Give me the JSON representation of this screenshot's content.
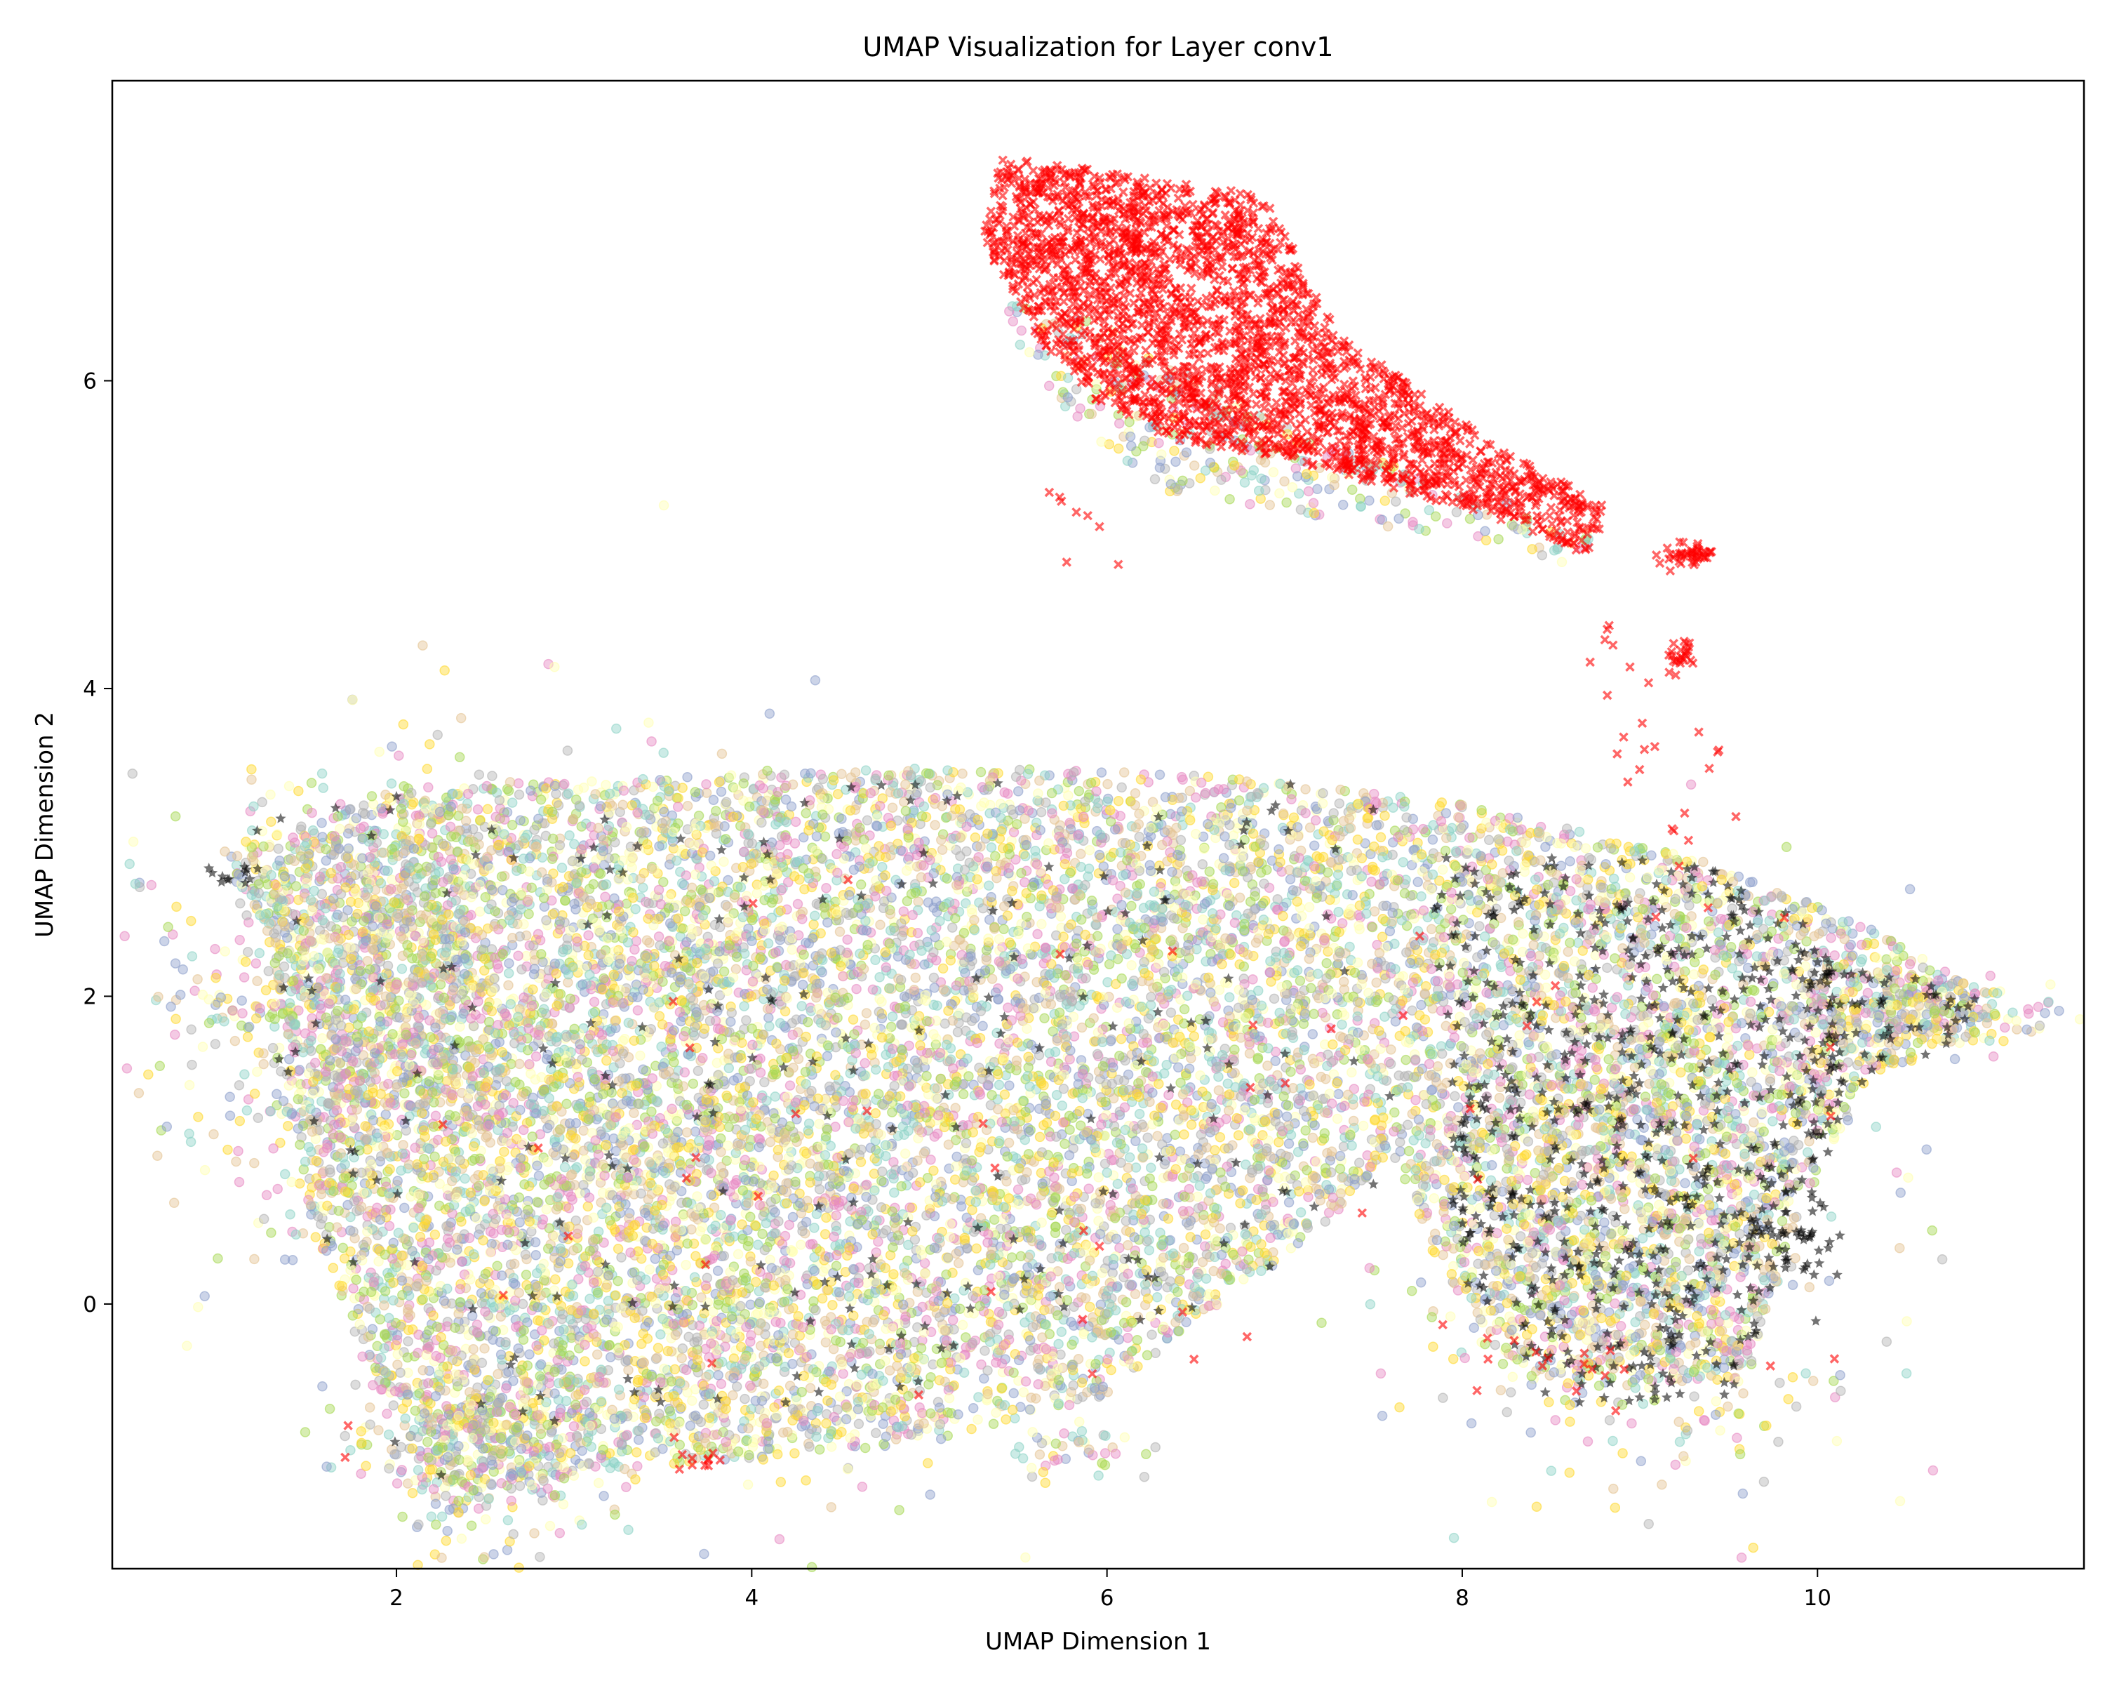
{
  "chart_data": {
    "type": "scatter",
    "title": "UMAP Visualization for Layer conv1",
    "xlabel": "UMAP Dimension 1",
    "ylabel": "UMAP Dimension 2",
    "xlim": [
      0.4,
      11.5
    ],
    "ylim": [
      -1.72,
      7.95
    ],
    "xticks": [
      2,
      4,
      6,
      8,
      10
    ],
    "yticks": [
      0,
      2,
      4,
      6
    ],
    "grid": false,
    "legend": "none",
    "colors": {
      "red": "#ff0000",
      "black": "#000000",
      "teal": "#8dd3c7",
      "light_yellow": "#ffffb3",
      "gold": "#ffd92f",
      "blue_gray": "#8da0cb",
      "green": "#a6d854",
      "pink": "#e78ac3",
      "tan": "#e5c494",
      "gray": "#b3b3b3"
    },
    "series": [
      {
        "marker": "x",
        "color": "#ff0000",
        "clusters": [
          {
            "shape": "poly",
            "pts": [
              [
                5.4,
                7.45
              ],
              [
                6.4,
                7.3
              ],
              [
                6.9,
                7.2
              ],
              [
                7.3,
                6.3
              ],
              [
                7.8,
                5.9
              ],
              [
                8.3,
                5.5
              ],
              [
                8.8,
                5.2
              ],
              [
                8.75,
                4.85
              ],
              [
                8.2,
                5.1
              ],
              [
                7.6,
                5.3
              ],
              [
                7.0,
                5.5
              ],
              [
                6.4,
                5.6
              ],
              [
                5.9,
                5.9
              ],
              [
                5.6,
                6.3
              ],
              [
                5.3,
                6.9
              ]
            ],
            "n": 2600
          },
          {
            "shape": "blob",
            "cx": 9.3,
            "cy": 4.87,
            "rx": 0.07,
            "ry": 0.04,
            "n": 45
          },
          {
            "shape": "blob",
            "cx": 9.25,
            "cy": 4.23,
            "rx": 0.04,
            "ry": 0.05,
            "n": 22
          },
          {
            "shape": "poly",
            "pts": [
              [
                8.6,
                4.4
              ],
              [
                9.1,
                4.45
              ],
              [
                9.55,
                3.4
              ],
              [
                9.55,
                2.6
              ],
              [
                9.3,
                2.6
              ],
              [
                8.6,
                3.8
              ]
            ],
            "n": 28
          },
          {
            "shape": "poly",
            "pts": [
              [
                5.6,
                5.3
              ],
              [
                5.9,
                5.3
              ],
              [
                6.3,
                4.7
              ],
              [
                5.8,
                4.7
              ]
            ],
            "n": 8
          },
          {
            "shape": "poly",
            "pts": [
              [
                1.4,
                2.8
              ],
              [
                10.4,
                2.8
              ],
              [
                10.2,
                -0.5
              ],
              [
                1.5,
                -1.1
              ]
            ],
            "n": 55
          },
          {
            "shape": "blob",
            "cx": 8.7,
            "cy": -0.4,
            "rx": 0.3,
            "ry": 0.15,
            "n": 12
          },
          {
            "shape": "blob",
            "cx": 3.75,
            "cy": -1.05,
            "rx": 0.08,
            "ry": 0.05,
            "n": 10
          }
        ]
      },
      {
        "marker": "star",
        "color": "#000000",
        "clusters": [
          {
            "shape": "poly",
            "pts": [
              [
                7.8,
                2.9
              ],
              [
                9.3,
                2.9
              ],
              [
                10.1,
                2.4
              ],
              [
                10.2,
                1.5
              ],
              [
                9.9,
                0.4
              ],
              [
                9.5,
                -0.6
              ],
              [
                8.5,
                -0.7
              ],
              [
                8.0,
                0.1
              ],
              [
                7.9,
                1.2
              ]
            ],
            "n": 650
          },
          {
            "shape": "blob",
            "cx": 9.85,
            "cy": 0.45,
            "rx": 0.12,
            "ry": 0.18,
            "n": 45
          },
          {
            "shape": "poly",
            "pts": [
              [
                10.0,
                2.3
              ],
              [
                10.9,
                2.0
              ],
              [
                10.8,
                1.7
              ],
              [
                10.0,
                1.3
              ]
            ],
            "n": 55
          },
          {
            "shape": "poly",
            "pts": [
              [
                1.2,
                3.3
              ],
              [
                7.8,
                3.5
              ],
              [
                7.5,
                0.3
              ],
              [
                5.0,
                -0.5
              ],
              [
                2.0,
                -1.2
              ],
              [
                1.3,
                1.0
              ]
            ],
            "n": 230
          },
          {
            "shape": "blob",
            "cx": 1.1,
            "cy": 2.82,
            "rx": 0.08,
            "ry": 0.04,
            "n": 12
          }
        ]
      },
      {
        "marker": "circle",
        "palette": [
          "#8dd3c7",
          "#ffffb3",
          "#ffd92f",
          "#8da0cb",
          "#a6d854",
          "#e78ac3",
          "#e5c494",
          "#b3b3b3"
        ],
        "clusters": [
          {
            "shape": "poly",
            "pts": [
              [
                1.0,
                2.9
              ],
              [
                2.0,
                3.35
              ],
              [
                4.0,
                3.45
              ],
              [
                5.5,
                3.5
              ],
              [
                7.0,
                3.4
              ],
              [
                8.0,
                3.25
              ],
              [
                9.3,
                2.9
              ],
              [
                10.2,
                2.5
              ],
              [
                10.9,
                2.05
              ],
              [
                10.9,
                1.7
              ],
              [
                10.3,
                1.5
              ],
              [
                9.9,
                0.6
              ],
              [
                9.6,
                -0.5
              ],
              [
                8.4,
                -0.55
              ],
              [
                7.9,
                0.2
              ],
              [
                7.6,
                1.0
              ],
              [
                7.3,
                0.6
              ],
              [
                7.0,
                0.3
              ],
              [
                6.5,
                -0.1
              ],
              [
                6.0,
                -0.6
              ],
              [
                5.0,
                -0.9
              ],
              [
                4.0,
                -1.0
              ],
              [
                3.0,
                -1.1
              ],
              [
                2.2,
                -1.2
              ],
              [
                1.8,
                -0.3
              ],
              [
                1.5,
                0.5
              ],
              [
                1.4,
                1.5
              ],
              [
                1.3,
                2.4
              ]
            ],
            "n": 12000
          },
          {
            "shape": "blob",
            "cx": 1.8,
            "cy": 2.0,
            "rx": 0.5,
            "ry": 0.7,
            "n": 900
          },
          {
            "shape": "blob",
            "cx": 2.4,
            "cy": -0.9,
            "rx": 0.3,
            "ry": 0.3,
            "n": 350
          },
          {
            "shape": "blob",
            "cx": 3.5,
            "cy": 0.8,
            "rx": 0.9,
            "ry": 1.3,
            "n": 700
          },
          {
            "shape": "blob",
            "cx": 5.85,
            "cy": -0.95,
            "rx": 0.2,
            "ry": 0.08,
            "n": 40
          },
          {
            "shape": "blob",
            "cx": 8.9,
            "cy": 0.5,
            "rx": 0.6,
            "ry": 0.9,
            "n": 600
          },
          {
            "shape": "blob",
            "cx": 10.5,
            "cy": 1.9,
            "rx": 0.4,
            "ry": 0.12,
            "n": 250
          },
          {
            "shape": "poly",
            "pts": [
              [
                5.3,
                6.6
              ],
              [
                5.9,
                6.4
              ],
              [
                7.2,
                5.6
              ],
              [
                8.8,
                5.0
              ],
              [
                8.6,
                4.8
              ],
              [
                7.3,
                5.1
              ],
              [
                6.2,
                5.3
              ],
              [
                5.7,
                5.9
              ]
            ],
            "n": 320
          }
        ]
      }
    ]
  }
}
